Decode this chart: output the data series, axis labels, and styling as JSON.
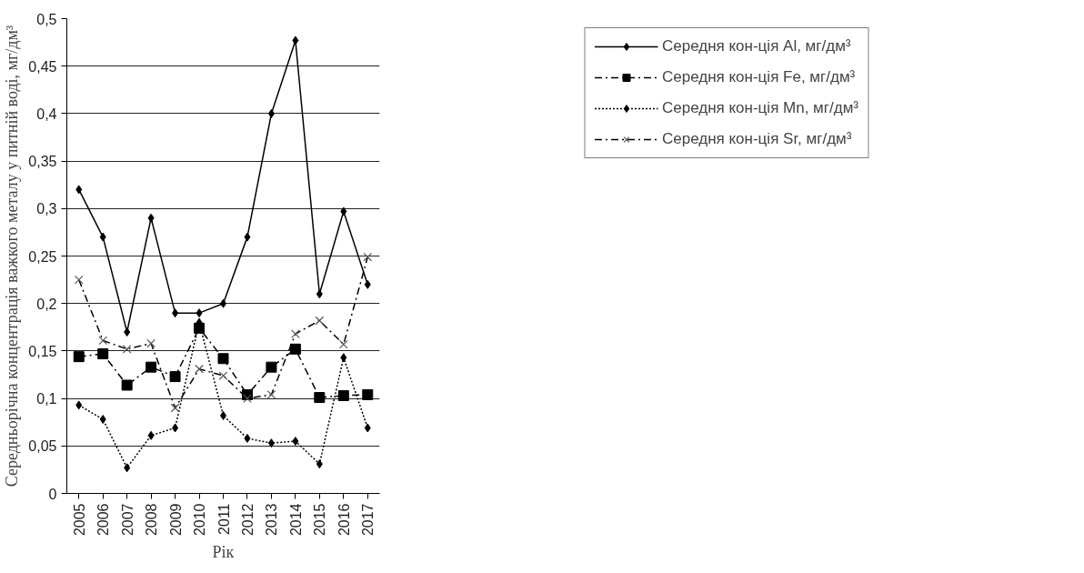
{
  "chart_data": {
    "type": "line",
    "xlabel": "Рік",
    "ylabel": "Середньорічна концентрація важкого металу у питній воді, мг/дм³",
    "categories": [
      "2005",
      "2006",
      "2007",
      "2008",
      "2009",
      "2010",
      "2011",
      "2012",
      "2013",
      "2014",
      "2015",
      "2016",
      "2017"
    ],
    "ylim": [
      0,
      0.5
    ],
    "yticks": [
      0,
      {
        "value": 0.05,
        "label": "0,05"
      },
      {
        "value": 0.1,
        "label": "0,1"
      },
      {
        "value": 0.15,
        "label": "0,15"
      },
      {
        "value": 0.2,
        "label": "0,2"
      },
      {
        "value": 0.25,
        "label": "0,25"
      },
      {
        "value": 0.3,
        "label": "0,3"
      },
      {
        "value": 0.35,
        "label": "0,35"
      },
      {
        "value": 0.4,
        "label": "0,4"
      },
      {
        "value": 0.45,
        "label": "0,45"
      },
      {
        "value": 0.5,
        "label": "0,5"
      }
    ],
    "grid": "y",
    "legend": "right",
    "series": [
      {
        "name": "Середня кон-ція Al, мг/дм³",
        "color": "#000000",
        "marker": "diamond",
        "line_style": "solid",
        "values": [
          0.32,
          0.27,
          0.17,
          0.29,
          0.19,
          0.19,
          0.2,
          0.27,
          0.4,
          0.477,
          0.21,
          0.297,
          0.22
        ]
      },
      {
        "name": "Середня кон-ція Fe, мг/дм³",
        "color": "#000000",
        "marker": "square",
        "line_style": "dashed",
        "values": [
          0.144,
          0.147,
          0.114,
          0.133,
          0.123,
          0.174,
          0.142,
          0.104,
          0.133,
          0.152,
          0.101,
          0.103,
          0.104
        ]
      },
      {
        "name": "Середня кон-ція Mn, мг/дм³",
        "color": "#000000",
        "marker": "diamond",
        "line_style": "dotted",
        "values": [
          0.093,
          0.078,
          0.027,
          0.061,
          0.069,
          0.18,
          0.082,
          0.058,
          0.053,
          0.055,
          0.031,
          0.143,
          0.069
        ]
      },
      {
        "name": "Середня кон-ція Sr, мг/дм³",
        "color": "#000000",
        "marker": "cross",
        "line_style": "dashed",
        "values": [
          0.225,
          0.161,
          0.152,
          0.158,
          0.09,
          0.131,
          0.124,
          0.1,
          0.104,
          0.168,
          0.182,
          0.157,
          0.249
        ]
      }
    ]
  }
}
